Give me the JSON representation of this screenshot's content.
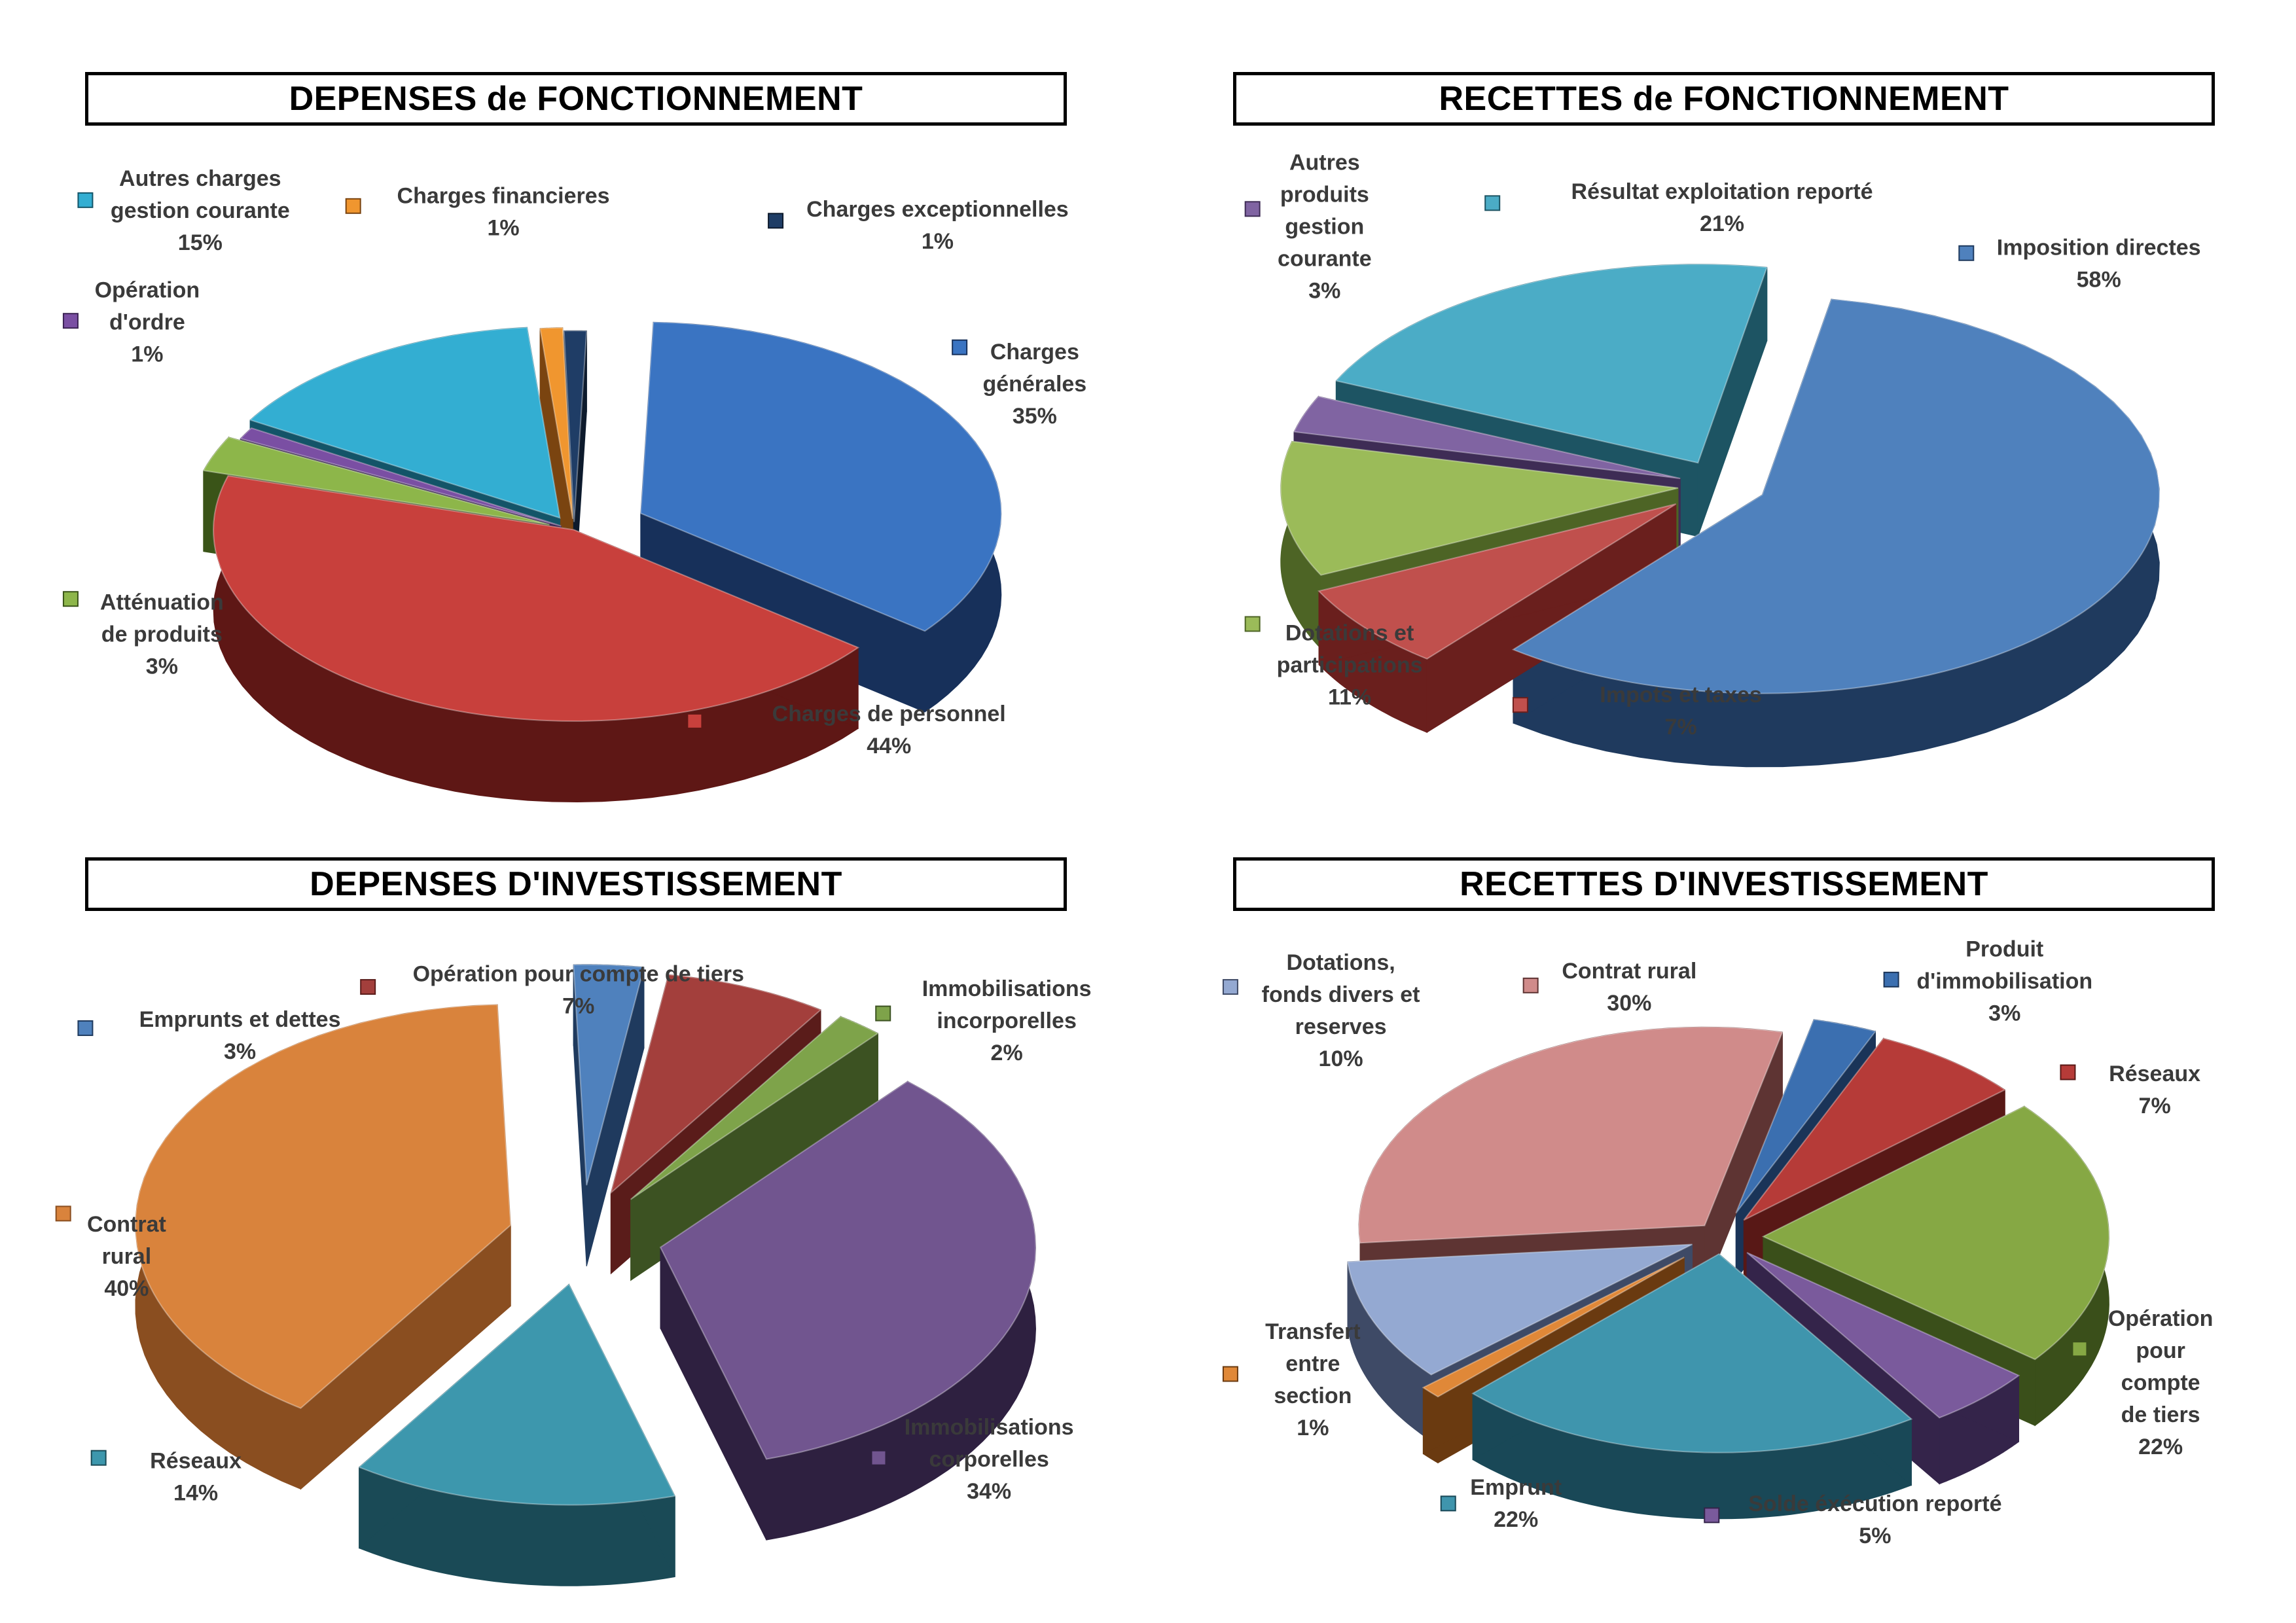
{
  "chart_data": [
    {
      "type": "pie",
      "title": "DEPENSES de FONCTIONNEMENT",
      "slices": [
        {
          "label": [
            "Charges",
            "générales"
          ],
          "pct": "35%",
          "value": 35,
          "color": "#3a74c2",
          "side": "#17305a"
        },
        {
          "label": [
            "Charges de personnel"
          ],
          "pct": "44%",
          "value": 44,
          "color": "#c8403c",
          "side": "#5e1715"
        },
        {
          "label": [
            "Atténuation",
            "de produits"
          ],
          "pct": "3%",
          "value": 3,
          "color": "#8db64a",
          "side": "#3a5418"
        },
        {
          "label": [
            "Opération",
            "d'ordre"
          ],
          "pct": "1%",
          "value": 1,
          "color": "#7a4fa3",
          "side": "#3a2253"
        },
        {
          "label": [
            "Autres charges",
            "gestion courante"
          ],
          "pct": "15%",
          "value": 15,
          "color": "#33aed2",
          "side": "#135468"
        },
        {
          "label": [
            "Charges financieres"
          ],
          "pct": "1%",
          "value": 1,
          "color": "#f0962f",
          "side": "#7a4410"
        },
        {
          "label": [
            "Charges exceptionnelles"
          ],
          "pct": "1%",
          "value": 1,
          "color": "#1f3d66",
          "side": "#0d1a2c"
        }
      ]
    },
    {
      "type": "pie",
      "title": "RECETTES de FONCTIONNEMENT",
      "slices": [
        {
          "label": [
            "Imposition directes"
          ],
          "pct": "58%",
          "value": 58,
          "color": "#4f81bd",
          "side": "#1f3a5e"
        },
        {
          "label": [
            "Impots et taxes"
          ],
          "pct": "7%",
          "value": 7,
          "color": "#c0504d",
          "side": "#6a1f1d"
        },
        {
          "label": [
            "Dotations et",
            "participations"
          ],
          "pct": "11%",
          "value": 11,
          "color": "#9bbb59",
          "side": "#4d6425"
        },
        {
          "label": [
            "Autres",
            "produits",
            "gestion",
            "courante"
          ],
          "pct": "3%",
          "value": 3,
          "color": "#8064a2",
          "side": "#3e2c55"
        },
        {
          "label": [
            "Résultat exploitation reporté"
          ],
          "pct": "21%",
          "value": 21,
          "color": "#4bacc6",
          "side": "#1d5463"
        }
      ]
    },
    {
      "type": "pie",
      "title": "DEPENSES D'INVESTISSEMENT",
      "slices": [
        {
          "label": [
            "Emprunts et dettes"
          ],
          "pct": "3%",
          "value": 3,
          "color": "#4f81bd",
          "side": "#1f3a5e"
        },
        {
          "label": [
            "Opération pour compte de tiers"
          ],
          "pct": "7%",
          "value": 7,
          "color": "#a33f3c",
          "side": "#5a1c1a"
        },
        {
          "label": [
            "Immobilisations",
            "incorporelles"
          ],
          "pct": "2%",
          "value": 2,
          "color": "#7ea34a",
          "side": "#3c5222"
        },
        {
          "label": [
            "Immobilisations",
            "corporelles"
          ],
          "pct": "34%",
          "value": 34,
          "color": "#71558f",
          "side": "#2e2040"
        },
        {
          "label": [
            "Réseaux"
          ],
          "pct": "14%",
          "value": 14,
          "color": "#3d97ad",
          "side": "#1a4a56"
        },
        {
          "label": [
            "Contrat",
            "rural"
          ],
          "pct": "40%",
          "value": 40,
          "color": "#d9833c",
          "side": "#8a4e20"
        }
      ]
    },
    {
      "type": "pie",
      "title": "RECETTES D'INVESTISSEMENT",
      "slices": [
        {
          "label": [
            "Produit",
            "d'immobilisation"
          ],
          "pct": "3%",
          "value": 3,
          "color": "#3b6fb0",
          "side": "#1a3458"
        },
        {
          "label": [
            "Réseaux"
          ],
          "pct": "7%",
          "value": 7,
          "color": "#b63b38",
          "side": "#581816"
        },
        {
          "label": [
            "Opération",
            "pour",
            "compte",
            "de tiers"
          ],
          "pct": "22%",
          "value": 22,
          "color": "#86a844",
          "side": "#3a4f1a"
        },
        {
          "label": [
            "Solde éxécution reporté"
          ],
          "pct": "5%",
          "value": 5,
          "color": "#7a5a9c",
          "side": "#34244a"
        },
        {
          "label": [
            "Emprunt"
          ],
          "pct": "22%",
          "value": 22,
          "color": "#3f95ad",
          "side": "#194857"
        },
        {
          "label": [
            "Transfert",
            "entre",
            "section"
          ],
          "pct": "1%",
          "value": 1,
          "color": "#e08838",
          "side": "#6a3a10"
        },
        {
          "label": [
            "Dotations,",
            "fonds divers et",
            "reserves"
          ],
          "pct": "10%",
          "value": 10,
          "color": "#94a9d2",
          "side": "#3e4a66"
        },
        {
          "label": [
            "Contrat rural"
          ],
          "pct": "30%",
          "value": 30,
          "color": "#d08b8a",
          "side": "#5e3433"
        }
      ]
    }
  ]
}
